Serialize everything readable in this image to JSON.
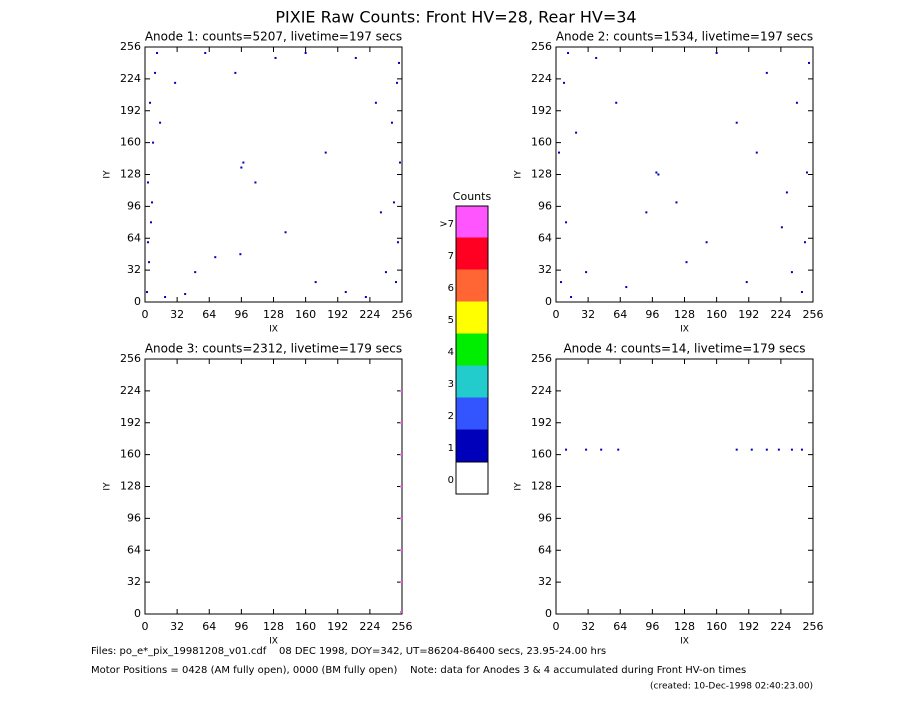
{
  "title": "PIXIE Raw Counts:  Front HV=28, Rear HV=34",
  "chart_data": [
    {
      "type": "scatter",
      "title": "Anode 1: counts=5207, livetime=197 secs",
      "x_label": "IX",
      "y_label": "IY",
      "color": "#0000bb",
      "xlim": [
        0,
        256
      ],
      "ylim": [
        0,
        256
      ],
      "xticks": [
        0,
        32,
        64,
        96,
        128,
        160,
        192,
        224,
        256
      ],
      "yticks": [
        0,
        32,
        64,
        96,
        128,
        160,
        192,
        224,
        256
      ],
      "x": [
        2,
        4,
        6,
        3,
        8,
        5,
        10,
        12,
        3,
        7,
        250,
        252,
        248,
        254,
        246,
        251,
        240,
        253,
        20,
        40,
        60,
        96,
        98,
        95,
        130,
        160,
        200,
        220,
        30,
        70,
        110,
        180,
        230,
        15,
        235,
        50,
        90,
        170,
        210,
        140
      ],
      "y": [
        10,
        40,
        80,
        120,
        160,
        200,
        230,
        250,
        60,
        100,
        20,
        60,
        100,
        140,
        180,
        220,
        30,
        240,
        5,
        8,
        250,
        135,
        140,
        48,
        245,
        250,
        10,
        5,
        220,
        45,
        120,
        150,
        200,
        180,
        90,
        30,
        230,
        20,
        245,
        70
      ]
    },
    {
      "type": "scatter",
      "title": "Anode 2: counts=1534, livetime=197 secs",
      "x_label": "IX",
      "y_label": "IY",
      "color": "#0000bb",
      "xlim": [
        0,
        256
      ],
      "ylim": [
        0,
        256
      ],
      "xticks": [
        0,
        32,
        64,
        96,
        128,
        160,
        192,
        224,
        256
      ],
      "yticks": [
        0,
        32,
        64,
        96,
        128,
        160,
        192,
        224,
        256
      ],
      "x": [
        5,
        10,
        3,
        8,
        12,
        245,
        248,
        250,
        240,
        252,
        100,
        102,
        30,
        60,
        90,
        150,
        180,
        210,
        230,
        20,
        70,
        130,
        160,
        200,
        40,
        120,
        190,
        225,
        15,
        235
      ],
      "y": [
        20,
        80,
        150,
        220,
        250,
        10,
        60,
        130,
        200,
        240,
        130,
        128,
        30,
        200,
        90,
        60,
        180,
        230,
        110,
        170,
        15,
        40,
        250,
        150,
        245,
        100,
        20,
        75,
        5,
        30
      ]
    },
    {
      "type": "scatter",
      "title": "Anode 3: counts=2312, livetime=179 secs",
      "x_label": "IX",
      "y_label": "IY",
      "color": "#ff55ff",
      "xlim": [
        0,
        256
      ],
      "ylim": [
        0,
        256
      ],
      "xticks": [
        0,
        32,
        64,
        96,
        128,
        160,
        192,
        224,
        256
      ],
      "yticks": [
        0,
        32,
        64,
        96,
        128,
        160,
        192,
        224,
        256
      ],
      "x": [
        255,
        255,
        255,
        255,
        255,
        255,
        255,
        255
      ],
      "y": [
        2,
        32,
        64,
        96,
        128,
        160,
        192,
        224
      ]
    },
    {
      "type": "scatter",
      "title": "Anode 4: counts=14, livetime=179 secs",
      "x_label": "IX",
      "y_label": "IY",
      "color": "#0000bb",
      "xlim": [
        0,
        256
      ],
      "ylim": [
        0,
        256
      ],
      "xticks": [
        0,
        32,
        64,
        96,
        128,
        160,
        192,
        224,
        256
      ],
      "yticks": [
        0,
        32,
        64,
        96,
        128,
        160,
        192,
        224,
        256
      ],
      "x": [
        10,
        30,
        45,
        62,
        180,
        195,
        210,
        222,
        235,
        245
      ],
      "y": [
        165,
        165,
        165,
        165,
        165,
        165,
        165,
        165,
        165,
        165
      ]
    }
  ],
  "colorbar": {
    "title": "Counts",
    "labels": [
      ">7",
      "7",
      "6",
      "5",
      "4",
      "3",
      "2",
      "1",
      "0"
    ],
    "colors": [
      "#ff55ff",
      "#ff0022",
      "#ff6633",
      "#ffff00",
      "#00ee00",
      "#22cccc",
      "#3355ff",
      "#0000bb",
      "#ffffff"
    ]
  },
  "footer": {
    "files": "Files: po_e*_pix_19981208_v01.cdf    08 DEC 1998, DOY=342, UT=86204-86400 secs, 23.95-24.00 hrs",
    "motor": "Motor Positions = 0428 (AM fully open), 0000 (BM fully open)    Note: data for Anodes 3 & 4 accumulated during Front HV-on times",
    "created": "(created: 10-Dec-1998 02:40:23.00)"
  }
}
